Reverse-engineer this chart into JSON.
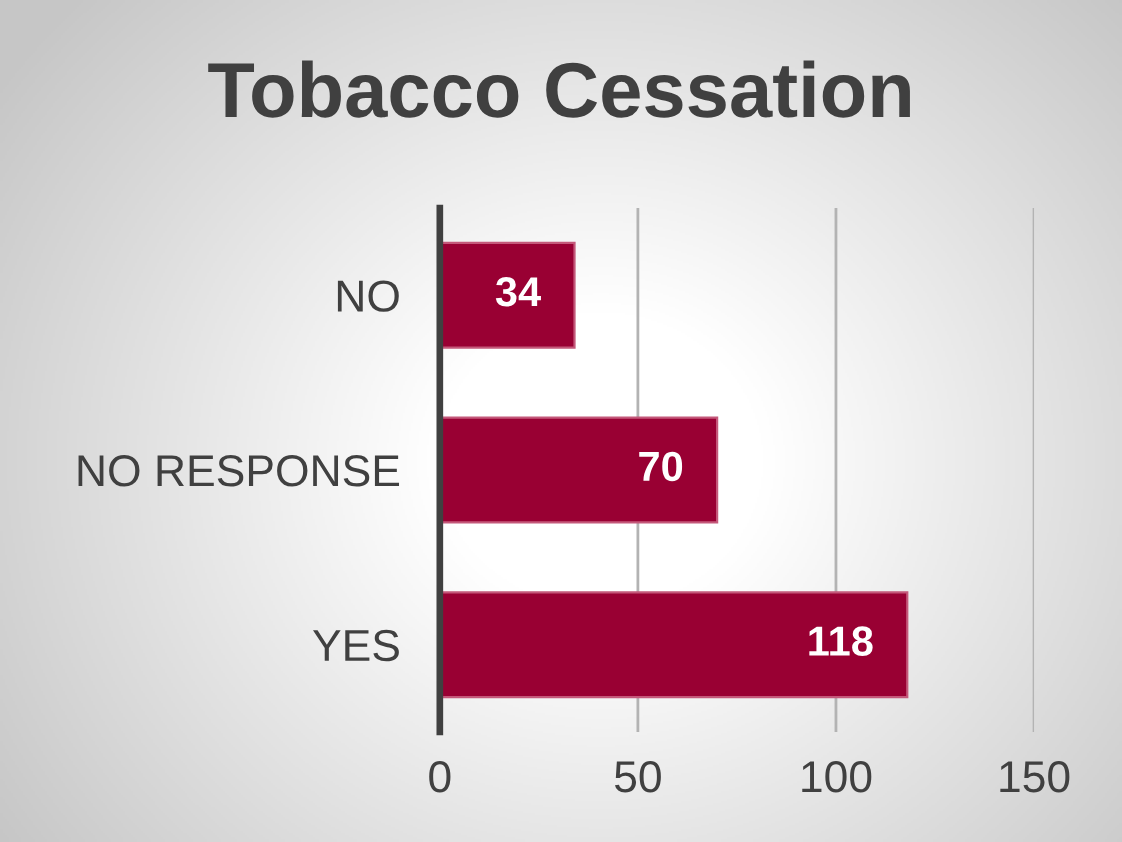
{
  "chart_data": {
    "type": "bar",
    "orientation": "horizontal",
    "title": "Tobacco Cessation",
    "categories": [
      "NO",
      "NO RESPONSE",
      "YES"
    ],
    "values": [
      34,
      70,
      118
    ],
    "color": "#990033",
    "xlim": [
      0,
      150
    ],
    "xticks": [
      0,
      50,
      100,
      150
    ],
    "grid": "x",
    "data_labels": true
  }
}
